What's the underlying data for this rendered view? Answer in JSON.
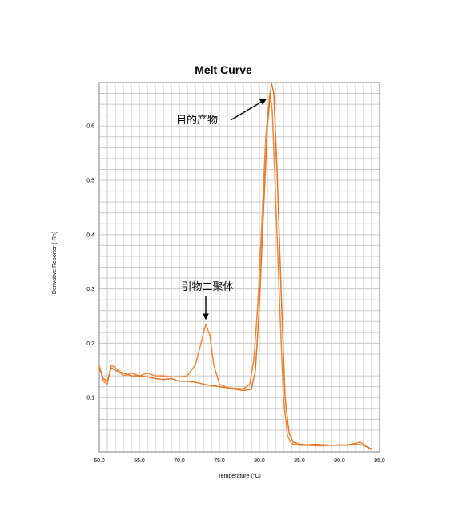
{
  "chart_data": {
    "type": "line",
    "title": "Melt Curve",
    "xlabel": "Temperature (°C)",
    "ylabel": "Derivative Reporter (-Rn)",
    "xlim": [
      60,
      95
    ],
    "ylim": [
      0,
      0.68
    ],
    "x_ticks": [
      "60.0",
      "65.0",
      "70.0",
      "75.0",
      "80.0",
      "85.0",
      "90.0",
      "95.0"
    ],
    "y_ticks": [
      "0.1",
      "0.2",
      "0.3",
      "0.4",
      "0.5",
      "0.6"
    ],
    "grid": true,
    "series": [
      {
        "color": "#f0883c",
        "points": [
          [
            60,
            0.16
          ],
          [
            60.5,
            0.13
          ],
          [
            61,
            0.125
          ],
          [
            61.5,
            0.16
          ],
          [
            62,
            0.155
          ],
          [
            63,
            0.14
          ],
          [
            64,
            0.145
          ],
          [
            65,
            0.14
          ],
          [
            66,
            0.145
          ],
          [
            67,
            0.14
          ],
          [
            68,
            0.14
          ],
          [
            69,
            0.138
          ],
          [
            70,
            0.138
          ],
          [
            71,
            0.14
          ],
          [
            72,
            0.16
          ],
          [
            72.7,
            0.2
          ],
          [
            73.3,
            0.235
          ],
          [
            73.8,
            0.215
          ],
          [
            74.3,
            0.16
          ],
          [
            75,
            0.125
          ],
          [
            76,
            0.118
          ],
          [
            77,
            0.117
          ],
          [
            78,
            0.116
          ],
          [
            78.8,
            0.125
          ],
          [
            79.3,
            0.17
          ],
          [
            79.8,
            0.27
          ],
          [
            80.3,
            0.42
          ],
          [
            80.8,
            0.58
          ],
          [
            81.3,
            0.66
          ],
          [
            81.6,
            0.63
          ],
          [
            82,
            0.48
          ],
          [
            82.5,
            0.28
          ],
          [
            83,
            0.1
          ],
          [
            83.5,
            0.03
          ],
          [
            84,
            0.015
          ],
          [
            85,
            0.012
          ],
          [
            86,
            0.012
          ],
          [
            87,
            0.011
          ],
          [
            88,
            0.011
          ],
          [
            89,
            0.012
          ],
          [
            90,
            0.012
          ],
          [
            91,
            0.013
          ],
          [
            92,
            0.016
          ],
          [
            92.5,
            0.018
          ],
          [
            93,
            0.014
          ],
          [
            93.5,
            0.008
          ],
          [
            94,
            0.004
          ]
        ]
      },
      {
        "color": "#e07828",
        "points": [
          [
            60,
            0.155
          ],
          [
            60.5,
            0.135
          ],
          [
            61,
            0.13
          ],
          [
            61.5,
            0.155
          ],
          [
            62,
            0.15
          ],
          [
            63,
            0.145
          ],
          [
            64,
            0.14
          ],
          [
            65,
            0.14
          ],
          [
            66,
            0.138
          ],
          [
            67,
            0.135
          ],
          [
            68,
            0.133
          ],
          [
            69,
            0.135
          ],
          [
            70,
            0.13
          ],
          [
            71,
            0.13
          ],
          [
            72,
            0.128
          ],
          [
            73,
            0.125
          ],
          [
            74,
            0.122
          ],
          [
            75,
            0.12
          ],
          [
            76,
            0.118
          ],
          [
            77,
            0.115
          ],
          [
            78,
            0.113
          ],
          [
            79,
            0.115
          ],
          [
            79.5,
            0.15
          ],
          [
            80,
            0.27
          ],
          [
            80.5,
            0.44
          ],
          [
            81,
            0.6
          ],
          [
            81.5,
            0.68
          ],
          [
            81.8,
            0.66
          ],
          [
            82.2,
            0.52
          ],
          [
            82.7,
            0.3
          ],
          [
            83.2,
            0.1
          ],
          [
            83.7,
            0.035
          ],
          [
            84.2,
            0.018
          ],
          [
            85,
            0.014
          ],
          [
            86,
            0.013
          ],
          [
            87,
            0.014
          ],
          [
            88,
            0.013
          ],
          [
            89,
            0.012
          ],
          [
            90,
            0.013
          ],
          [
            91,
            0.012
          ],
          [
            92,
            0.014
          ],
          [
            93,
            0.012
          ],
          [
            93.5,
            0.009
          ],
          [
            94,
            0.005
          ]
        ]
      }
    ],
    "annotations": [
      {
        "text": "目的产物",
        "target": [
          81.3,
          0.655
        ]
      },
      {
        "text": "引物二聚体",
        "target": [
          73.3,
          0.24
        ]
      }
    ]
  }
}
